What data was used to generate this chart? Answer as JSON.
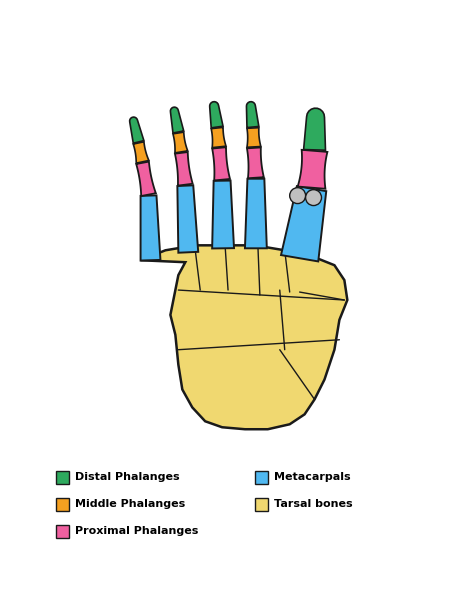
{
  "colors": {
    "distal": "#2eaa5e",
    "middle": "#f5a020",
    "proximal": "#f060a0",
    "metacarpal": "#50b8f0",
    "tarsal": "#f0d870",
    "outline": "#1a1a1a",
    "sesamoid": "#c0c0c0",
    "background": "#ffffff"
  },
  "legend_items": [
    {
      "label": "Distal Phalanges",
      "color_key": "distal",
      "col": 0
    },
    {
      "label": "Middle Phalanges",
      "color_key": "middle",
      "col": 0
    },
    {
      "label": "Proximal Phalanges",
      "color_key": "proximal",
      "col": 0
    },
    {
      "label": "Metacarpals",
      "color_key": "metacarpal",
      "col": 1
    },
    {
      "label": "Tarsal bones",
      "color_key": "tarsal",
      "col": 1
    }
  ]
}
